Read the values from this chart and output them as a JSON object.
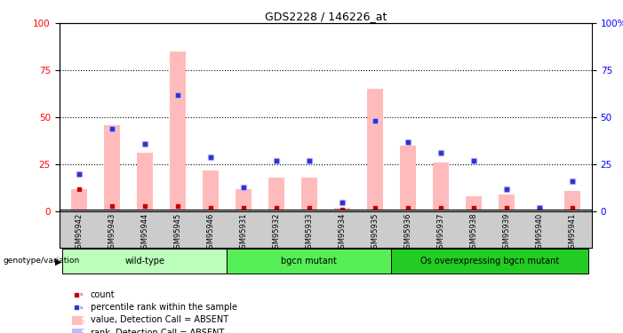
{
  "title": "GDS2228 / 146226_at",
  "samples": [
    "GSM95942",
    "GSM95943",
    "GSM95944",
    "GSM95945",
    "GSM95946",
    "GSM95931",
    "GSM95932",
    "GSM95933",
    "GSM95934",
    "GSM95935",
    "GSM95936",
    "GSM95937",
    "GSM95938",
    "GSM95939",
    "GSM95940",
    "GSM95941"
  ],
  "pink_bars": [
    12,
    46,
    31,
    85,
    22,
    12,
    18,
    18,
    2,
    65,
    35,
    26,
    8,
    9,
    0.5,
    11
  ],
  "blue_vals": [
    20,
    44,
    36,
    62,
    29,
    13,
    27,
    27,
    5,
    48,
    37,
    31,
    27,
    12,
    2,
    16
  ],
  "red_vals": [
    12,
    3,
    3,
    3,
    2,
    2,
    2,
    2,
    1,
    2,
    2,
    2,
    2,
    2,
    1,
    2
  ],
  "groups": [
    {
      "label": "wild-type",
      "start": 0,
      "end": 5
    },
    {
      "label": "bgcn mutant",
      "start": 5,
      "end": 10
    },
    {
      "label": "Os overexpressing bgcn mutant",
      "start": 10,
      "end": 16
    }
  ],
  "group_colors": [
    "#bbffbb",
    "#55ee55",
    "#22cc22"
  ],
  "ylim": [
    0,
    100
  ],
  "yticks": [
    0,
    25,
    50,
    75,
    100
  ],
  "bg_color": "#ffffff",
  "plot_bg": "#ffffff",
  "bar_color_pink": "#ffbbbb",
  "bar_color_blue": "#bbbbff",
  "dot_color_red": "#cc0000",
  "dot_color_blue": "#3333cc",
  "tick_bg": "#cccccc"
}
